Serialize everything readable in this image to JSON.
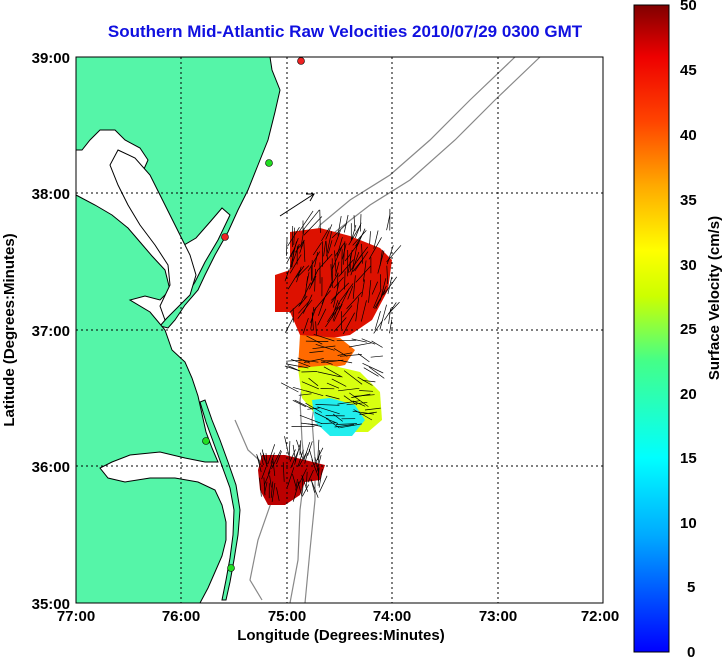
{
  "title": "Southern Mid-Atlantic Raw Velocities 2010/07/29 0300 GMT",
  "axes": {
    "xlabel": "Longitude (Degrees:Minutes)",
    "ylabel": "Latitude (Degrees:Minutes)",
    "x_ticks": [
      "77:00",
      "76:00",
      "75:00",
      "74:00",
      "73:00",
      "72:00"
    ],
    "y_ticks": [
      "39:00",
      "38:00",
      "37:00",
      "36:00",
      "35:00"
    ],
    "x_range": [
      -77,
      -72
    ],
    "y_range": [
      35,
      39
    ],
    "grid": "dotted"
  },
  "colorbar": {
    "label": "Surface Velocity (cm/s)",
    "ticks": [
      "50",
      "45",
      "40",
      "35",
      "30",
      "25",
      "20",
      "15",
      "10",
      "5",
      "0"
    ],
    "range": [
      0,
      50
    ],
    "colormap": "jet"
  },
  "colors": {
    "land": "#55f5a8",
    "coastline": "#000000",
    "bathymetry": "#888888",
    "title": "#1010e0",
    "station_green": "#22dd22",
    "station_red": "#ee2222"
  }
}
